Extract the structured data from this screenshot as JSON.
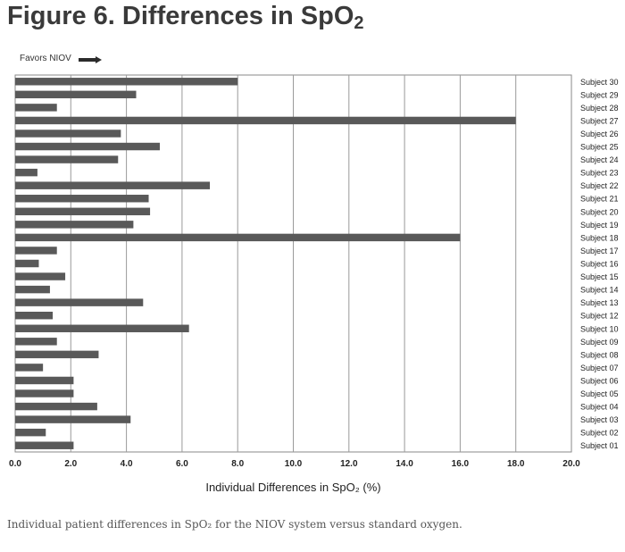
{
  "figure": {
    "title": "Figure 6.  Differences in SpO",
    "title_sub": "2",
    "caption": "Individual patient differences in SpO₂ for the NIOV system versus standard oxygen."
  },
  "annotation": {
    "favors_label": "Favors NIOV"
  },
  "chart_data": {
    "type": "bar",
    "orientation": "horizontal",
    "title": "",
    "xlabel": "Individual Differences in SpO₂ (%)",
    "ylabel": "",
    "xlim": [
      0,
      20
    ],
    "xticks": [
      "0.0",
      "2.0",
      "4.0",
      "6.0",
      "8.0",
      "10.0",
      "12.0",
      "14.0",
      "16.0",
      "18.0",
      "20.0"
    ],
    "grid": "vertical",
    "bar_color": "#595959",
    "categories": [
      "Subject 30",
      "Subject 29",
      "Subject 28",
      "Subject 27",
      "Subject 26",
      "Subject 25",
      "Subject 24",
      "Subject 23",
      "Subject 22",
      "Subject 21",
      "Subject 20",
      "Subject 19",
      "Subject 18",
      "Subject 17",
      "Subject 16",
      "Subject 15",
      "Subject 14",
      "Subject 13",
      "Subject 12",
      "Subject 10",
      "Subject 09",
      "Subject 08",
      "Subject 07",
      "Subject 06",
      "Subject 05",
      "Subject 04",
      "Subject 03",
      "Subject 02",
      "Subject 01"
    ],
    "values": [
      8.0,
      4.35,
      1.5,
      18.0,
      3.8,
      5.2,
      3.7,
      0.8,
      7.0,
      4.8,
      4.85,
      4.25,
      16.0,
      1.5,
      0.85,
      1.8,
      1.25,
      4.6,
      1.35,
      6.25,
      1.5,
      3.0,
      1.0,
      2.1,
      2.1,
      2.95,
      4.15,
      1.1,
      2.1
    ]
  }
}
